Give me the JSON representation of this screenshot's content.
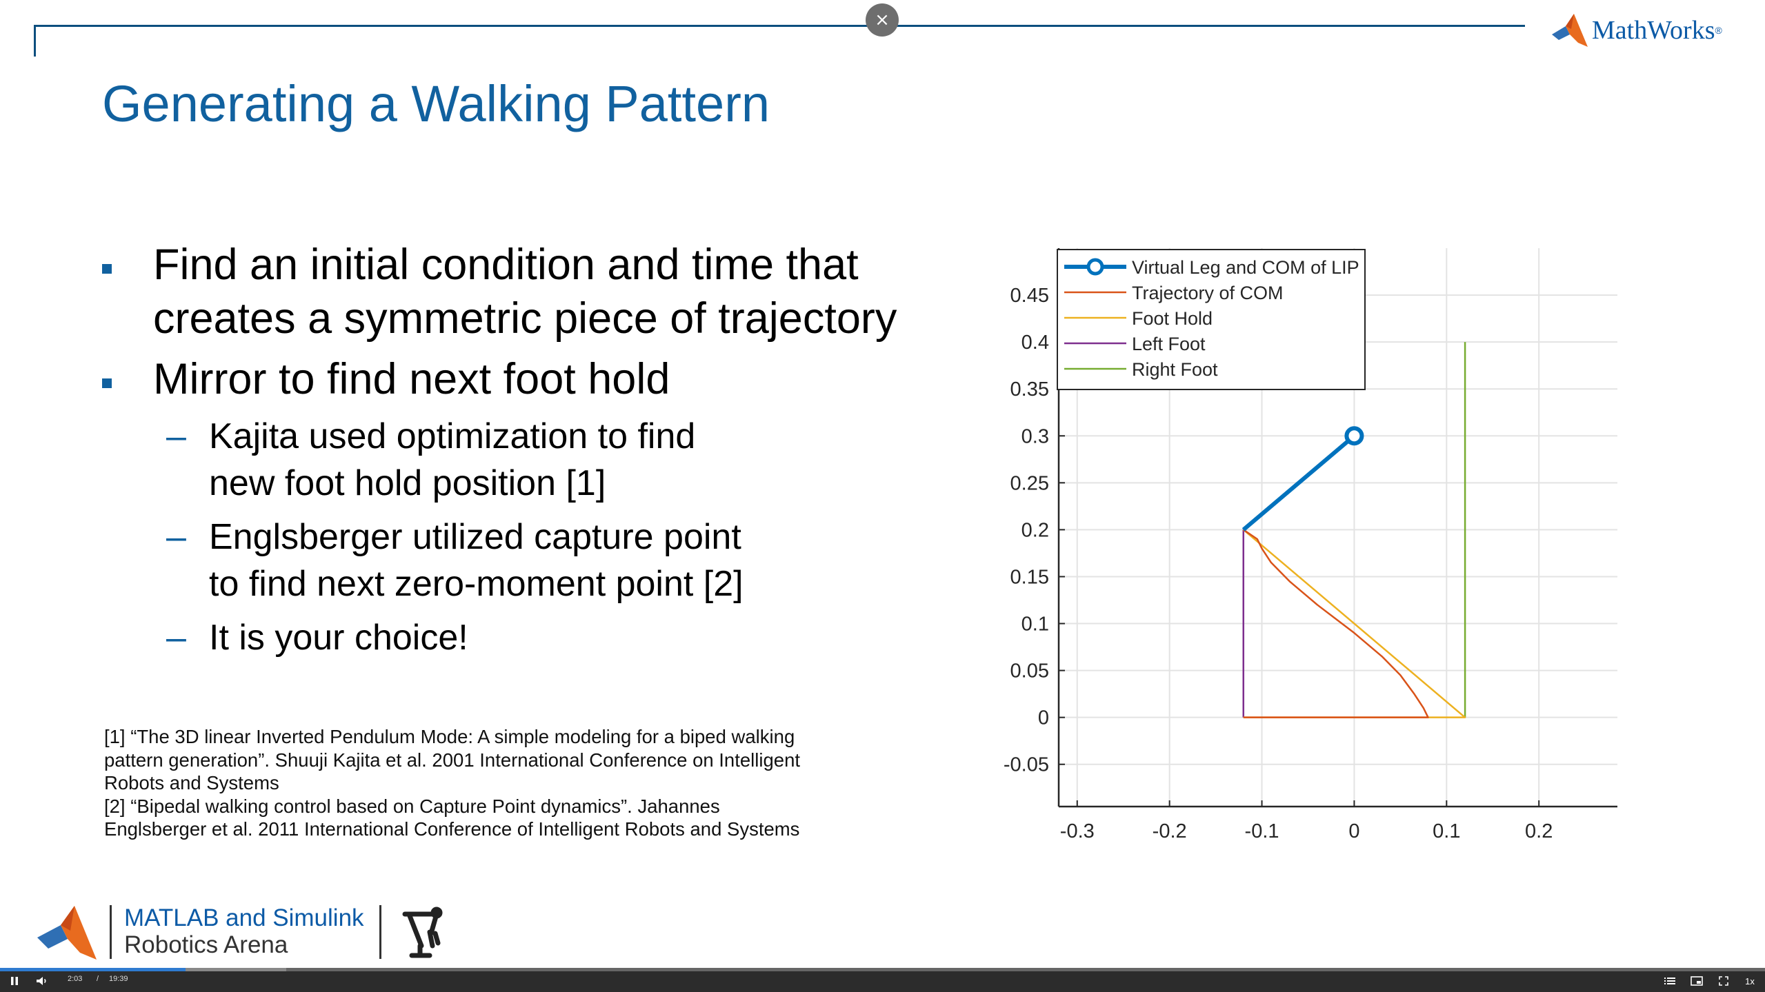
{
  "header": {
    "close_glyph": "×",
    "brand_name": "MathWorks",
    "brand_reg": "®",
    "brand_icon": "matlab-membrane-icon"
  },
  "slide": {
    "title": "Generating a Walking Pattern",
    "bullets": [
      {
        "text_line1": "Find an initial condition and time that",
        "text_line2": "creates a symmetric piece of trajectory"
      },
      {
        "text_line1": "Mirror to find next foot hold"
      }
    ],
    "sub_bullets": [
      {
        "dash": "–",
        "text_line1": "Kajita used optimization to find",
        "text_line2": "new foot hold position [1]"
      },
      {
        "dash": "–",
        "text_line1": "Englsberger utilized capture point",
        "text_line2": "to find next zero-moment point [2]"
      },
      {
        "dash": "–",
        "text_line1": "It is your choice!"
      }
    ],
    "references": [
      "[1] “The 3D linear Inverted Pendulum Mode: A simple modeling for a biped walking",
      "pattern generation”. Shuuji Kajita et al. 2001 International Conference on Intelligent",
      "Robots and Systems",
      "[2] “Bipedal walking control based on Capture Point dynamics”. Jahannes",
      "Englsberger et al. 2011 International Conference of Intelligent Robots and Systems"
    ]
  },
  "chart_data": {
    "type": "line",
    "title": "",
    "xlabel": "",
    "ylabel": "",
    "xlim": [
      -0.32,
      0.285
    ],
    "ylim": [
      -0.095,
      0.5
    ],
    "xticks": [
      -0.3,
      -0.2,
      -0.1,
      0,
      0.1,
      0.2
    ],
    "xtick_labels": [
      "-0.3",
      "-0.2",
      "-0.1",
      "0",
      "0.1",
      "0.2"
    ],
    "yticks": [
      -0.05,
      0,
      0.05,
      0.1,
      0.15,
      0.2,
      0.25,
      0.3,
      0.35,
      0.4,
      0.45
    ],
    "ytick_labels": [
      "-0.05",
      "0",
      "0.05",
      "0.1",
      "0.15",
      "0.2",
      "0.25",
      "0.3",
      "0.35",
      "0.4",
      "0.45"
    ],
    "grid": true,
    "legend_position": "top-left",
    "series": [
      {
        "name": "Virtual Leg and COM of LIP",
        "color": "#0072BD",
        "marker": "circle",
        "x": [
          -0.12,
          0
        ],
        "y": [
          0.2,
          0.3
        ]
      },
      {
        "name": "Trajectory of COM",
        "color": "#D95319",
        "x": [
          -0.12,
          -0.105,
          -0.1,
          -0.09,
          -0.07,
          -0.04,
          0.0,
          0.03,
          0.05,
          0.065,
          0.075,
          0.08,
          -0.12
        ],
        "y": [
          0.2,
          0.19,
          0.18,
          0.165,
          0.145,
          0.12,
          0.09,
          0.065,
          0.045,
          0.025,
          0.01,
          0.0,
          0.0
        ]
      },
      {
        "name": "Foot Hold",
        "color": "#EDB120",
        "x": [
          -0.12,
          0.12,
          -0.12
        ],
        "y": [
          0.2,
          0.0,
          0.0
        ]
      },
      {
        "name": "Left Foot",
        "color": "#7E2F8E",
        "x": [
          -0.12,
          -0.12
        ],
        "y": [
          0.2,
          0.0
        ]
      },
      {
        "name": "Right Foot",
        "color": "#77AC30",
        "x": [
          0.12,
          0.12
        ],
        "y": [
          0.0,
          0.4
        ]
      }
    ]
  },
  "footer": {
    "brand_line1": "MATLAB and Simulink",
    "brand_line2": "Robotics Arena",
    "robot_icon": "robot-arm-icon"
  },
  "player": {
    "current_time": "2:03",
    "separator": "/",
    "duration": "19:39",
    "speed": "1x",
    "progress": 0.105,
    "buffered": 0.162,
    "icons": [
      "pause-icon",
      "volume-icon",
      "chapters-icon",
      "picture-in-picture-icon",
      "fullscreen-icon"
    ]
  }
}
